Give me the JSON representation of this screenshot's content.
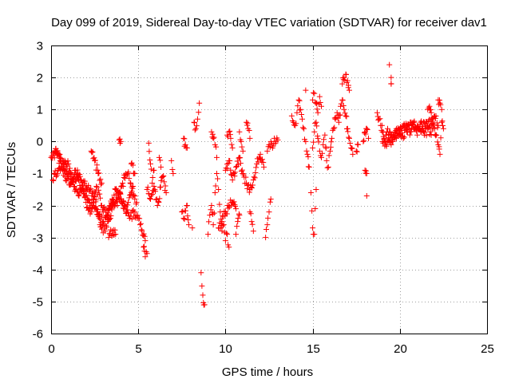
{
  "chart_data": {
    "type": "scatter",
    "title": "Day 099 of 2019, Sidereal Day-to-day VTEC variation (SDTVAR) for receiver dav1",
    "xlabel": "GPS time / hours",
    "ylabel": "SDTVAR / TECUs",
    "xlim": [
      0,
      25
    ],
    "ylim": [
      -6,
      3
    ],
    "xticks": [
      0,
      5,
      10,
      15,
      20,
      25
    ],
    "yticks": [
      -6,
      -5,
      -4,
      -3,
      -2,
      -1,
      0,
      1,
      2,
      3
    ],
    "grid": true,
    "marker": "+",
    "marker_color": "#ff0000",
    "series": [
      {
        "name": "SDTVAR",
        "segments": [
          [
            0.0,
            -0.5,
            0.3,
            -0.3,
            0.6,
            -0.8,
            0.9,
            -1.0,
            1.2,
            -1.2,
            1.5,
            -1.1,
            1.8,
            -1.5,
            2.1,
            -1.8,
            2.4,
            -2.0,
            2.7,
            -2.3,
            3.0,
            -2.5,
            3.3,
            -2.1,
            3.6,
            -1.9,
            3.9,
            -1.6,
            4.2,
            -2.0,
            4.5,
            -2.4,
            4.8,
            -2.2,
            5.1,
            -2.6,
            5.4,
            -3.1
          ],
          [
            0.1,
            -1.2,
            0.4,
            -0.9,
            0.7,
            -0.6,
            1.0,
            -0.7,
            1.3,
            -1.4,
            1.6,
            -1.7,
            1.9,
            -1.3,
            2.2,
            -1.5,
            2.5,
            -1.7,
            2.8,
            -2.6,
            3.1,
            -2.8,
            3.4,
            -2.4,
            3.7,
            -1.5,
            4.0,
            -1.8,
            4.3,
            -2.2,
            4.6,
            -1.6,
            4.9,
            -1.9
          ],
          [
            0.2,
            -0.3,
            0.5,
            -0.4,
            0.8,
            -1.1,
            1.1,
            -1.3,
            1.4,
            -0.9,
            1.7,
            -1.2,
            2.0,
            -1.9,
            2.3,
            -2.2,
            2.6,
            -1.4,
            2.9,
            -2.0,
            3.2,
            -2.3,
            3.5,
            -1.8,
            3.8,
            -2.0,
            4.1,
            -1.3,
            4.4,
            -1.0,
            4.7,
            -1.4
          ],
          [
            2.3,
            -0.3,
            2.5,
            -0.6,
            2.7,
            -1.0,
            2.9,
            -1.3
          ],
          [
            3.3,
            -3.0,
            3.5,
            -2.8,
            3.7,
            -2.9
          ],
          [
            3.9,
            0.05,
            4.0,
            0.0
          ],
          [
            4.6,
            -0.7,
            4.8,
            -1.0
          ],
          [
            5.3,
            -3.3,
            5.4,
            -3.6,
            5.5,
            -3.5
          ],
          [
            5.5,
            -1.5,
            5.7,
            -1.8,
            5.9,
            -1.4,
            6.1,
            -2.0,
            6.4,
            -1.1,
            6.6,
            -1.6
          ],
          [
            5.6,
            -0.05,
            5.7,
            -0.7,
            5.8,
            -1.3,
            5.9,
            -0.9
          ],
          [
            6.2,
            -0.5,
            6.3,
            -0.8
          ],
          [
            6.9,
            -0.6,
            7.0,
            -1.0
          ],
          [
            7.5,
            -2.2,
            7.6,
            -2.4,
            7.8,
            -2.0,
            7.9,
            -2.6
          ],
          [
            7.6,
            0.1,
            7.7,
            -0.1,
            7.8,
            -0.2
          ],
          [
            8.1,
            -2.7
          ],
          [
            8.2,
            0.6,
            8.3,
            0.4,
            8.4,
            0.7,
            8.5,
            1.2
          ],
          [
            8.6,
            -4.1,
            8.7,
            -4.8,
            8.8,
            -5.1
          ],
          [
            9.0,
            -2.9,
            9.1,
            -2.3,
            9.2,
            -2.0,
            9.3,
            -2.6,
            9.4,
            -1.6,
            9.5,
            -1.0,
            9.6,
            -1.5,
            9.7,
            -2.2,
            9.8,
            -2.8,
            9.9,
            -2.6,
            10.0,
            -3.1,
            10.1,
            -2.9,
            10.2,
            -3.3
          ],
          [
            9.2,
            0.3,
            9.3,
            0.1,
            9.4,
            -0.1,
            9.5,
            -0.5
          ],
          [
            9.6,
            -2.7,
            9.8,
            -2.5,
            10.0,
            -2.2,
            10.2,
            -2.0,
            10.4,
            -1.9,
            10.6,
            -2.1
          ],
          [
            10.0,
            -0.9,
            10.2,
            -0.6,
            10.4,
            -1.2,
            10.6,
            -0.8,
            10.8,
            -0.5,
            11.0,
            -1.0,
            11.2,
            -1.3,
            11.4,
            -1.5,
            11.6,
            -1.2,
            11.8,
            -0.7,
            12.0,
            -0.4,
            12.2,
            -0.8
          ],
          [
            10.1,
            0.2,
            10.2,
            0.3,
            10.3,
            0.1,
            10.4,
            -0.2
          ],
          [
            10.6,
            -2.9,
            10.7,
            -2.5,
            10.8,
            -2.3
          ],
          [
            10.8,
            0.3,
            10.9,
            0.0,
            11.0,
            -0.3
          ],
          [
            11.2,
            0.6,
            11.3,
            0.4,
            11.4,
            0.1
          ],
          [
            11.4,
            -2.2,
            11.5,
            -2.5,
            11.6,
            -2.8
          ],
          [
            12.3,
            -3.0,
            12.4,
            -2.6,
            12.5,
            -2.2,
            12.6,
            -1.8
          ],
          [
            12.4,
            -0.3,
            12.5,
            -0.1,
            12.6,
            0.0,
            12.7,
            -0.2,
            12.8,
            0.1,
            12.9,
            0.0,
            13.0,
            0.05
          ],
          [
            13.8,
            0.8,
            13.9,
            0.6,
            14.0,
            0.5,
            14.1,
            0.9,
            14.2,
            1.3,
            14.3,
            1.0,
            14.4,
            0.7,
            14.5,
            0.4,
            14.6,
            0.0,
            14.7,
            -0.4,
            14.8,
            -0.8
          ],
          [
            14.6,
            1.6
          ],
          [
            14.9,
            -1.6,
            15.0,
            -2.7,
            15.1,
            -2.9,
            15.2,
            -1.5
          ],
          [
            15.0,
            -0.2,
            15.1,
            0.3,
            15.2,
            0.6,
            15.3,
            0.1,
            15.4,
            -0.3,
            15.5,
            -0.5,
            15.6,
            -0.1,
            15.7,
            0.2,
            15.8,
            -0.6,
            15.9,
            -0.8,
            16.0,
            -0.3,
            16.1,
            0.1,
            16.2,
            0.4,
            16.3,
            0.7,
            16.4,
            0.9,
            16.5,
            0.6,
            16.6,
            1.1,
            16.7,
            1.3,
            16.8,
            1.0,
            16.9,
            0.8,
            17.0,
            0.4,
            17.1,
            0.1,
            17.2,
            -0.2,
            17.3,
            -0.4
          ],
          [
            15.0,
            1.3,
            15.1,
            1.5,
            15.2,
            1.2,
            15.3,
            0.9,
            15.4,
            1.4,
            15.5,
            1.1
          ],
          [
            16.7,
            1.8,
            16.8,
            2.0,
            16.9,
            2.1,
            17.0,
            1.9,
            17.1,
            1.6
          ],
          [
            17.5,
            -0.3,
            17.6,
            -0.1
          ],
          [
            17.9,
            0.0,
            18.0,
            0.3,
            18.1,
            0.4,
            18.2,
            0.1
          ],
          [
            18.0,
            -0.9,
            18.1,
            -1.0
          ],
          [
            18.1,
            -1.7
          ],
          [
            18.7,
            0.9,
            18.8,
            0.7,
            18.9,
            0.5,
            19.0,
            0.3,
            19.1,
            0.1,
            19.2,
            0.2,
            19.3,
            0.4,
            19.4,
            0.0,
            19.5,
            -0.1,
            19.6,
            0.2,
            19.7,
            0.3,
            19.8,
            0.1,
            19.9,
            0.2,
            20.0,
            0.4,
            20.2,
            0.5,
            20.4,
            0.3,
            20.6,
            0.6,
            20.8,
            0.4,
            21.0,
            0.5,
            21.2,
            0.3,
            21.4,
            0.6,
            21.6,
            0.5,
            21.8,
            0.7,
            22.0,
            0.4,
            22.1,
            0.2,
            22.2,
            -0.1,
            22.3,
            -0.4,
            22.4,
            0.6,
            22.5,
            0.4
          ],
          [
            19.0,
            0.0,
            19.2,
            -0.1,
            19.4,
            0.3,
            19.6,
            0.0,
            19.8,
            0.4,
            20.0,
            0.2,
            20.2,
            0.1,
            20.4,
            0.5,
            20.6,
            0.3,
            20.8,
            0.6,
            21.0,
            0.2,
            21.2,
            0.6,
            21.4,
            0.2,
            21.6,
            0.4,
            21.8,
            0.2,
            22.0,
            0.8,
            22.2,
            0.5
          ],
          [
            19.4,
            2.4
          ],
          [
            19.5,
            2.0,
            19.5,
            1.8
          ],
          [
            21.6,
            1.0,
            21.7,
            1.1,
            21.8,
            0.9,
            21.9,
            0.7
          ],
          [
            22.2,
            1.3,
            22.3,
            1.2,
            22.4,
            1.0
          ]
        ]
      }
    ]
  }
}
